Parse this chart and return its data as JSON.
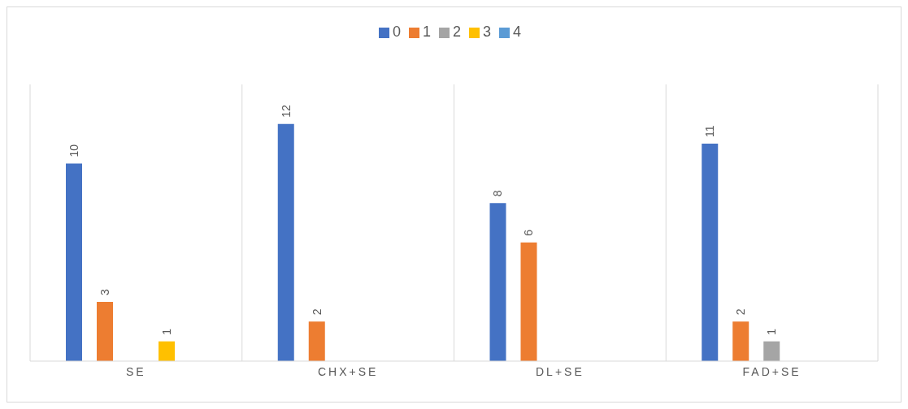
{
  "chart_data": {
    "type": "bar",
    "categories": [
      "SE",
      "CHX+SE",
      "DL+SE",
      "FAD+SE"
    ],
    "series": [
      {
        "name": "0",
        "color": "#4472c4",
        "values": [
          10,
          12,
          8,
          11
        ]
      },
      {
        "name": "1",
        "color": "#ed7d31",
        "values": [
          3,
          2,
          6,
          2
        ]
      },
      {
        "name": "2",
        "color": "#a5a5a5",
        "values": [
          null,
          null,
          null,
          1
        ]
      },
      {
        "name": "3",
        "color": "#ffc000",
        "values": [
          1,
          null,
          null,
          null
        ]
      },
      {
        "name": "4",
        "color": "#5b9bd5",
        "values": [
          null,
          null,
          null,
          null
        ]
      }
    ],
    "ylim": [
      0,
      14
    ],
    "tick_labels": "x",
    "grid": "x",
    "legend": "top",
    "data_labels": true
  }
}
